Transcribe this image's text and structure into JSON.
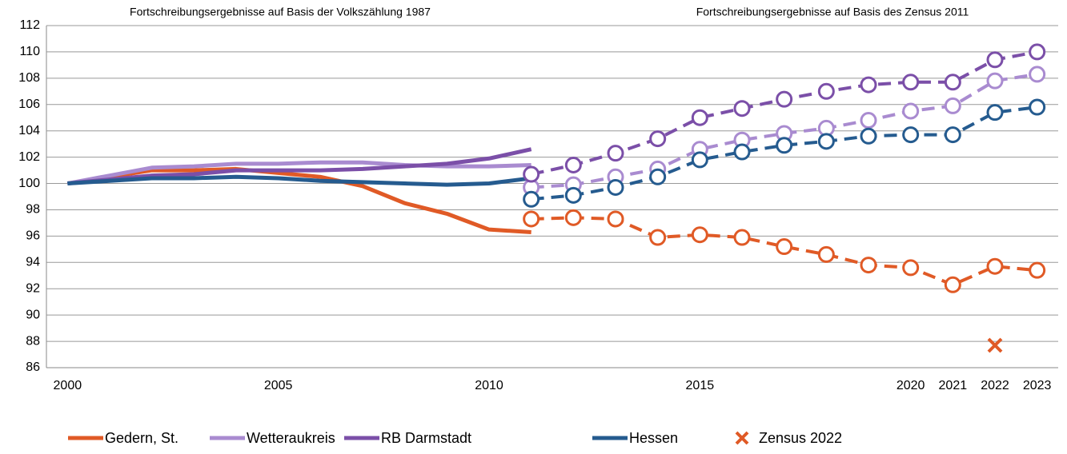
{
  "chart_data": {
    "type": "line",
    "annotations": [
      "Fortschreibungsergebnisse auf Basis der Volkszählung 1987",
      "Fortschreibungsergebnisse auf Basis des Zensus 2011"
    ],
    "x": [
      2000,
      2001,
      2002,
      2003,
      2004,
      2005,
      2006,
      2007,
      2008,
      2009,
      2010,
      2011,
      2012,
      2013,
      2014,
      2015,
      2016,
      2017,
      2018,
      2019,
      2020,
      2021,
      2022,
      2023
    ],
    "xlim": [
      1999.5,
      2023.5
    ],
    "xticks": [
      2000,
      2005,
      2010,
      2015,
      2020,
      2021,
      2022,
      2023
    ],
    "ylim": [
      86,
      112
    ],
    "yticks": [
      86,
      88,
      90,
      92,
      94,
      96,
      98,
      100,
      102,
      104,
      106,
      108,
      110,
      112
    ],
    "grid": true,
    "series": [
      {
        "name": "Gedern, St.",
        "color": "#e05a26",
        "values": [
          100,
          100.5,
          101,
          101,
          101.1,
          100.8,
          100.5,
          99.8,
          98.5,
          97.7,
          96.5,
          96.3,
          null,
          null,
          null,
          null,
          null,
          null,
          null,
          null,
          null,
          null,
          null,
          null
        ],
        "zensus2011_values": [
          null,
          null,
          null,
          null,
          null,
          null,
          null,
          null,
          null,
          null,
          null,
          97.3,
          97.4,
          97.3,
          95.9,
          96.1,
          95.9,
          95.2,
          94.6,
          93.8,
          93.6,
          92.3,
          93.7,
          93.4
        ]
      },
      {
        "name": "Wetteraukreis",
        "color": "#a98bd0",
        "values": [
          100,
          100.6,
          101.2,
          101.3,
          101.5,
          101.5,
          101.6,
          101.6,
          101.4,
          101.3,
          101.3,
          101.4,
          null,
          null,
          null,
          null,
          null,
          null,
          null,
          null,
          null,
          null,
          null,
          null
        ],
        "zensus2011_values": [
          null,
          null,
          null,
          null,
          null,
          null,
          null,
          null,
          null,
          null,
          null,
          99.7,
          99.9,
          100.5,
          101.1,
          102.6,
          103.3,
          103.8,
          104.2,
          104.8,
          105.5,
          105.9,
          107.8,
          108.3
        ]
      },
      {
        "name": "RB Darmstadt",
        "color": "#7b4fa8",
        "values": [
          100,
          100.3,
          100.6,
          100.7,
          101,
          101,
          101,
          101.1,
          101.3,
          101.5,
          101.9,
          102.6,
          null,
          null,
          null,
          null,
          null,
          null,
          null,
          null,
          null,
          null,
          null,
          null
        ],
        "zensus2011_values": [
          null,
          null,
          null,
          null,
          null,
          null,
          null,
          null,
          null,
          null,
          null,
          100.7,
          101.4,
          102.3,
          103.4,
          105,
          105.7,
          106.4,
          107,
          107.5,
          107.7,
          107.7,
          109.4,
          110
        ]
      },
      {
        "name": "Hessen",
        "color": "#255b8f",
        "values": [
          100,
          100.2,
          100.4,
          100.4,
          100.5,
          100.4,
          100.2,
          100.1,
          100,
          99.9,
          100,
          100.4,
          null,
          null,
          null,
          null,
          null,
          null,
          null,
          null,
          null,
          null,
          null,
          null
        ],
        "zensus2011_values": [
          null,
          null,
          null,
          null,
          null,
          null,
          null,
          null,
          null,
          null,
          null,
          98.8,
          99.1,
          99.7,
          100.5,
          101.8,
          102.4,
          102.9,
          103.2,
          103.6,
          103.7,
          103.7,
          105.4,
          105.8
        ]
      }
    ],
    "markers": [
      {
        "name": "Zensus 2022",
        "x": 2022,
        "value": 87.7,
        "color": "#e05a26"
      }
    ]
  }
}
